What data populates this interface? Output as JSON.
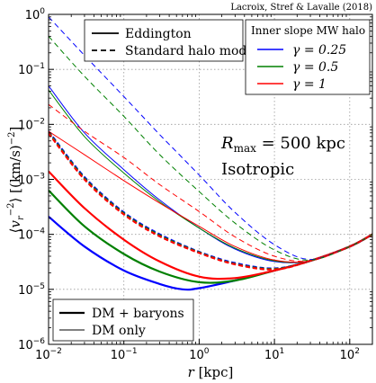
{
  "credit": "Lacroix, Stref & Lavalle (2018)",
  "annotations": {
    "rmax": "R_max = 500 kpc",
    "isotropic": "Isotropic"
  },
  "legends": {
    "model": [
      {
        "label": "Eddington",
        "style": "solid"
      },
      {
        "label": "Standard halo model",
        "style": "dashed"
      }
    ],
    "slope_title": "Inner slope MW halo",
    "slope": [
      {
        "label": "γ = 0.25",
        "color": "#0000ff"
      },
      {
        "label": "γ = 0.5",
        "color": "#008000"
      },
      {
        "label": "γ = 1",
        "color": "#ff0000"
      }
    ],
    "content": [
      {
        "label": "DM + baryons",
        "style": "thick"
      },
      {
        "label": "DM only",
        "style": "thin"
      }
    ]
  },
  "chart_data": {
    "type": "line",
    "xscale": "log",
    "yscale": "log",
    "xlim": [
      0.01,
      200
    ],
    "ylim": [
      1e-06,
      1
    ],
    "xlabel": "r [kpc]",
    "ylabel": "⟨v_r^-2⟩ [(km/s)^-2]",
    "xticks": [
      0.01,
      0.1,
      1,
      10,
      100
    ],
    "xtick_labels": [
      "10^-2",
      "10^-1",
      "10^0",
      "10^1",
      "10^2"
    ],
    "yticks": [
      1e-06,
      1e-05,
      0.0001,
      0.001,
      0.01,
      0.1,
      1
    ],
    "ytick_labels": [
      "10^-6",
      "10^-5",
      "10^-4",
      "10^-3",
      "10^-2",
      "10^-1",
      "10^0"
    ],
    "grid": true,
    "legend_placement": [
      "top-left",
      "top-right",
      "bottom-left"
    ],
    "colors": {
      "gamma_0.25": "#0000ff",
      "gamma_0.5": "#008000",
      "gamma_1": "#ff0000"
    },
    "series": [
      {
        "gamma": "0.25",
        "model": "Eddington",
        "content": "DM + baryons",
        "x": [
          0.01,
          0.03,
          0.1,
          0.3,
          0.6,
          1,
          3,
          10,
          30,
          100,
          200
        ],
        "y": [
          0.00021,
          6e-05,
          2.2e-05,
          1.25e-05,
          1e-05,
          1.05e-05,
          1.45e-05,
          2.2e-05,
          3.3e-05,
          6e-05,
          0.0001
        ]
      },
      {
        "gamma": "0.5",
        "model": "Eddington",
        "content": "DM + baryons",
        "x": [
          0.01,
          0.03,
          0.1,
          0.3,
          1,
          3,
          10,
          30,
          100,
          200
        ],
        "y": [
          0.00063,
          0.00014,
          4.4e-05,
          2.1e-05,
          1.35e-05,
          1.45e-05,
          2.2e-05,
          3.3e-05,
          6e-05,
          0.0001
        ]
      },
      {
        "gamma": "1",
        "model": "Eddington",
        "content": "DM + baryons",
        "x": [
          0.01,
          0.03,
          0.1,
          0.3,
          1,
          3,
          10,
          30,
          100,
          200
        ],
        "y": [
          0.0014,
          0.0003,
          8e-05,
          3.2e-05,
          1.7e-05,
          1.6e-05,
          2.2e-05,
          3.3e-05,
          6e-05,
          0.0001
        ]
      },
      {
        "gamma": "0.25",
        "model": "Standard halo model",
        "content": "DM + baryons",
        "x": [
          0.01,
          0.03,
          0.1,
          0.3,
          1,
          3,
          10,
          30,
          100,
          200
        ],
        "y": [
          0.0075,
          0.0011,
          0.00025,
          0.0001,
          4.8e-05,
          3e-05,
          2.4e-05,
          3.3e-05,
          6e-05,
          0.0001
        ]
      },
      {
        "gamma": "0.5",
        "model": "Standard halo model",
        "content": "DM + baryons",
        "x": [
          0.01,
          0.03,
          0.1,
          0.3,
          1,
          3,
          10,
          30,
          100,
          200
        ],
        "y": [
          0.0072,
          0.00105,
          0.00024,
          9.6e-05,
          4.7e-05,
          2.9e-05,
          2.35e-05,
          3.3e-05,
          6e-05,
          0.0001
        ]
      },
      {
        "gamma": "1",
        "model": "Standard halo model",
        "content": "DM + baryons",
        "x": [
          0.01,
          0.03,
          0.1,
          0.3,
          1,
          3,
          10,
          30,
          100,
          200
        ],
        "y": [
          0.0069,
          0.001,
          0.00023,
          9.2e-05,
          4.6e-05,
          2.85e-05,
          2.3e-05,
          3.3e-05,
          6e-05,
          0.0001
        ]
      },
      {
        "gamma": "0.25",
        "model": "Eddington",
        "content": "DM only",
        "x": [
          0.01,
          0.03,
          0.1,
          0.3,
          1,
          3,
          10,
          30,
          100,
          200
        ],
        "y": [
          0.05,
          0.007,
          0.0015,
          0.00042,
          0.00013,
          5.4e-05,
          3.2e-05,
          3.3e-05,
          6e-05,
          0.0001
        ]
      },
      {
        "gamma": "0.5",
        "model": "Eddington",
        "content": "DM only",
        "x": [
          0.01,
          0.03,
          0.1,
          0.3,
          1,
          3,
          10,
          30,
          100,
          200
        ],
        "y": [
          0.042,
          0.006,
          0.0013,
          0.00039,
          0.00013,
          5.6e-05,
          3.3e-05,
          3.3e-05,
          6e-05,
          0.0001
        ]
      },
      {
        "gamma": "1",
        "model": "Eddington",
        "content": "DM only",
        "x": [
          0.01,
          0.03,
          0.1,
          0.3,
          1,
          3,
          10,
          30,
          100,
          200
        ],
        "y": [
          0.0075,
          0.0028,
          0.00095,
          0.00037,
          0.00014,
          6e-05,
          3.4e-05,
          3.3e-05,
          6e-05,
          0.0001
        ]
      },
      {
        "gamma": "0.25",
        "model": "Standard halo model",
        "content": "DM only",
        "x": [
          0.01,
          0.03,
          0.1,
          0.3,
          1,
          3,
          10,
          30,
          100,
          200
        ],
        "y": [
          0.9,
          0.18,
          0.032,
          0.0065,
          0.0012,
          0.00025,
          6.5e-05,
          3.5e-05,
          6e-05,
          0.0001
        ]
      },
      {
        "gamma": "0.5",
        "model": "Standard halo model",
        "content": "DM only",
        "x": [
          0.01,
          0.03,
          0.1,
          0.3,
          1,
          3,
          10,
          30,
          100,
          200
        ],
        "y": [
          0.4,
          0.075,
          0.014,
          0.0028,
          0.0006,
          0.00016,
          5.2e-05,
          3.4e-05,
          6e-05,
          0.0001
        ]
      },
      {
        "gamma": "1",
        "model": "Standard halo model",
        "content": "DM only",
        "x": [
          0.01,
          0.03,
          0.1,
          0.3,
          1,
          3,
          10,
          30,
          100,
          200
        ],
        "y": [
          0.023,
          0.0075,
          0.0025,
          0.0008,
          0.00026,
          9e-05,
          4e-05,
          3.3e-05,
          6e-05,
          0.0001
        ]
      }
    ]
  }
}
